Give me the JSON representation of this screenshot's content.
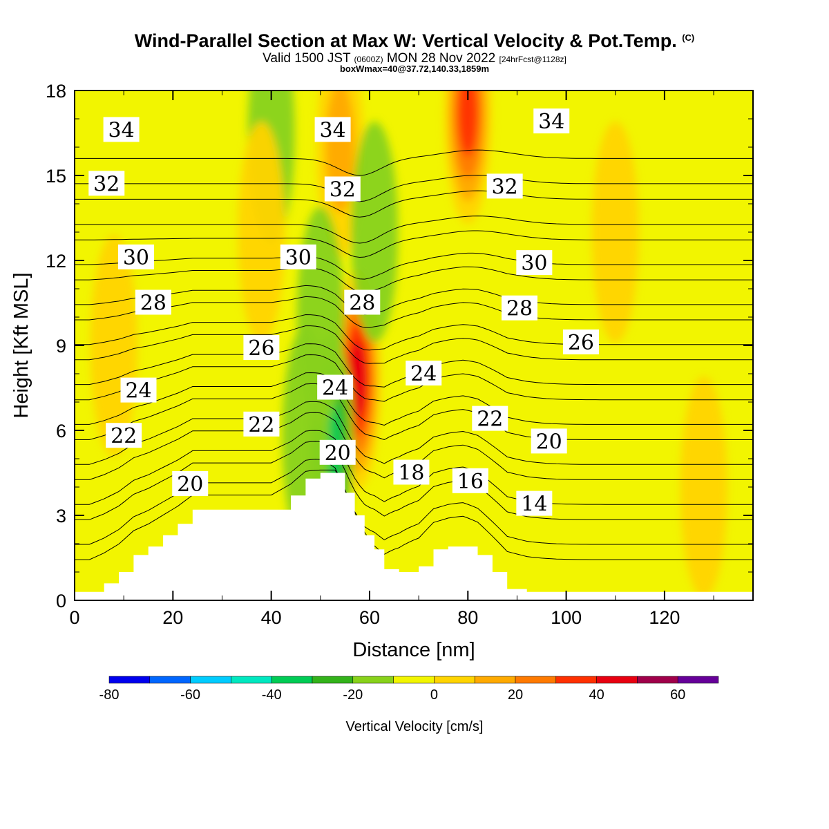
{
  "header": {
    "title": "Wind-Parallel Section at Max W: Vertical Velocity & Pot.Temp.",
    "copyright": "(C)",
    "valid_prefix": "Valid 1500 JST",
    "valid_utc": "(0600Z)",
    "valid_date": "MON 28 Nov 2022",
    "forecast": "[24hrFcst@1128z]",
    "box_info": "boxWmax=40@37.72,140.33,1859m"
  },
  "colors": {
    "plot_base": "#f2f500",
    "terrain": "#ffffff",
    "contour_line": "#000000"
  },
  "chart_data": {
    "type": "heatmap",
    "xlabel": "Distance [nm]",
    "ylabel": "Height [Kft MSL]",
    "xlim": [
      0,
      138
    ],
    "ylim": [
      0,
      18
    ],
    "xticks": [
      0,
      20,
      40,
      60,
      80,
      100,
      120
    ],
    "yticks": [
      0,
      3,
      6,
      9,
      12,
      15,
      18
    ],
    "grid": false,
    "colorbar": {
      "label": "Vertical Velocity [cm/s]",
      "levels": [
        -80,
        -70,
        -60,
        -50,
        -40,
        -30,
        -20,
        -10,
        0,
        10,
        20,
        30,
        40,
        50,
        60,
        70
      ],
      "colors": [
        "#0000ee",
        "#0066ff",
        "#00ccff",
        "#00e8c0",
        "#00cc55",
        "#33b31a",
        "#88d21a",
        "#f2f500",
        "#ffd400",
        "#ffaa00",
        "#ff7a00",
        "#ff3000",
        "#e80010",
        "#a0004a",
        "#660099"
      ],
      "tick_labels": [
        "-80",
        "-60",
        "-40",
        "-20",
        "0",
        "20",
        "40",
        "60"
      ]
    },
    "terrain_profile": {
      "x": [
        0,
        3,
        6,
        9,
        12,
        15,
        18,
        21,
        24,
        28,
        32,
        36,
        40,
        44,
        47,
        50,
        53,
        55,
        57,
        59,
        61,
        63,
        66,
        70,
        73,
        76,
        79,
        82,
        85,
        88,
        92,
        100,
        110,
        120,
        130,
        138
      ],
      "y": [
        0.3,
        0.3,
        0.6,
        1.0,
        1.6,
        1.9,
        2.3,
        2.7,
        3.2,
        3.2,
        3.2,
        3.2,
        3.2,
        3.7,
        4.3,
        4.5,
        4.5,
        3.8,
        3.0,
        2.3,
        1.8,
        1.1,
        1.0,
        1.2,
        1.8,
        1.9,
        1.9,
        1.6,
        1.0,
        0.4,
        0.3,
        0.3,
        0.3,
        0.3,
        0.3,
        0.3
      ]
    },
    "vertical_velocity_features": [
      {
        "x": 57.5,
        "y": 7.8,
        "value": 45
      },
      {
        "x": 80,
        "y": 17.2,
        "value": 35
      },
      {
        "x": 54,
        "y": 16,
        "value": 15
      },
      {
        "x": 52,
        "y": 5.5,
        "value": -40
      },
      {
        "x": 61,
        "y": 13,
        "value": -20
      },
      {
        "x": 40,
        "y": 16.5,
        "value": -20
      },
      {
        "x": 50,
        "y": 10,
        "value": -18
      },
      {
        "x": 47,
        "y": 5.8,
        "value": -20
      },
      {
        "x": 38,
        "y": 13,
        "value": 12
      },
      {
        "x": 110,
        "y": 13,
        "value": 10
      },
      {
        "x": 8,
        "y": 9,
        "value": 8
      },
      {
        "x": 128,
        "y": 4,
        "value": 8
      }
    ],
    "isentropes": [
      {
        "theta": 14,
        "label": "14"
      },
      {
        "theta": 16,
        "label": "16"
      },
      {
        "theta": 18,
        "label": "18"
      },
      {
        "theta": 20,
        "label": "20"
      },
      {
        "theta": 22,
        "label": "22"
      },
      {
        "theta": 24,
        "label": "24"
      },
      {
        "theta": 26,
        "label": "26"
      },
      {
        "theta": 28,
        "label": "28"
      },
      {
        "theta": 30,
        "label": "30"
      },
      {
        "theta": 32,
        "label": "32"
      },
      {
        "theta": 34,
        "label": "34"
      }
    ],
    "isentrope_labels": [
      {
        "text": "34",
        "x": 9.5,
        "y": 16.6
      },
      {
        "text": "34",
        "x": 52.5,
        "y": 16.6
      },
      {
        "text": "34",
        "x": 97,
        "y": 16.9
      },
      {
        "text": "32",
        "x": 6.5,
        "y": 14.7
      },
      {
        "text": "32",
        "x": 54.5,
        "y": 14.5
      },
      {
        "text": "32",
        "x": 87.5,
        "y": 14.6
      },
      {
        "text": "30",
        "x": 12.5,
        "y": 12.1
      },
      {
        "text": "30",
        "x": 45.5,
        "y": 12.1
      },
      {
        "text": "30",
        "x": 93.5,
        "y": 11.9
      },
      {
        "text": "28",
        "x": 16,
        "y": 10.5
      },
      {
        "text": "28",
        "x": 58.5,
        "y": 10.5
      },
      {
        "text": "28",
        "x": 90.5,
        "y": 10.3
      },
      {
        "text": "26",
        "x": 38,
        "y": 8.9
      },
      {
        "text": "26",
        "x": 103,
        "y": 9.1
      },
      {
        "text": "24",
        "x": 13,
        "y": 7.4
      },
      {
        "text": "24",
        "x": 53,
        "y": 7.5
      },
      {
        "text": "24",
        "x": 71,
        "y": 8.0
      },
      {
        "text": "22",
        "x": 10,
        "y": 5.8
      },
      {
        "text": "22",
        "x": 38,
        "y": 6.2
      },
      {
        "text": "22",
        "x": 84.5,
        "y": 6.4
      },
      {
        "text": "20",
        "x": 23.5,
        "y": 4.1
      },
      {
        "text": "20",
        "x": 53.5,
        "y": 5.2
      },
      {
        "text": "20",
        "x": 96.5,
        "y": 5.6
      },
      {
        "text": "18",
        "x": 68.5,
        "y": 4.5
      },
      {
        "text": "16",
        "x": 80.5,
        "y": 4.2
      },
      {
        "text": "14",
        "x": 93.5,
        "y": 3.4
      }
    ]
  }
}
